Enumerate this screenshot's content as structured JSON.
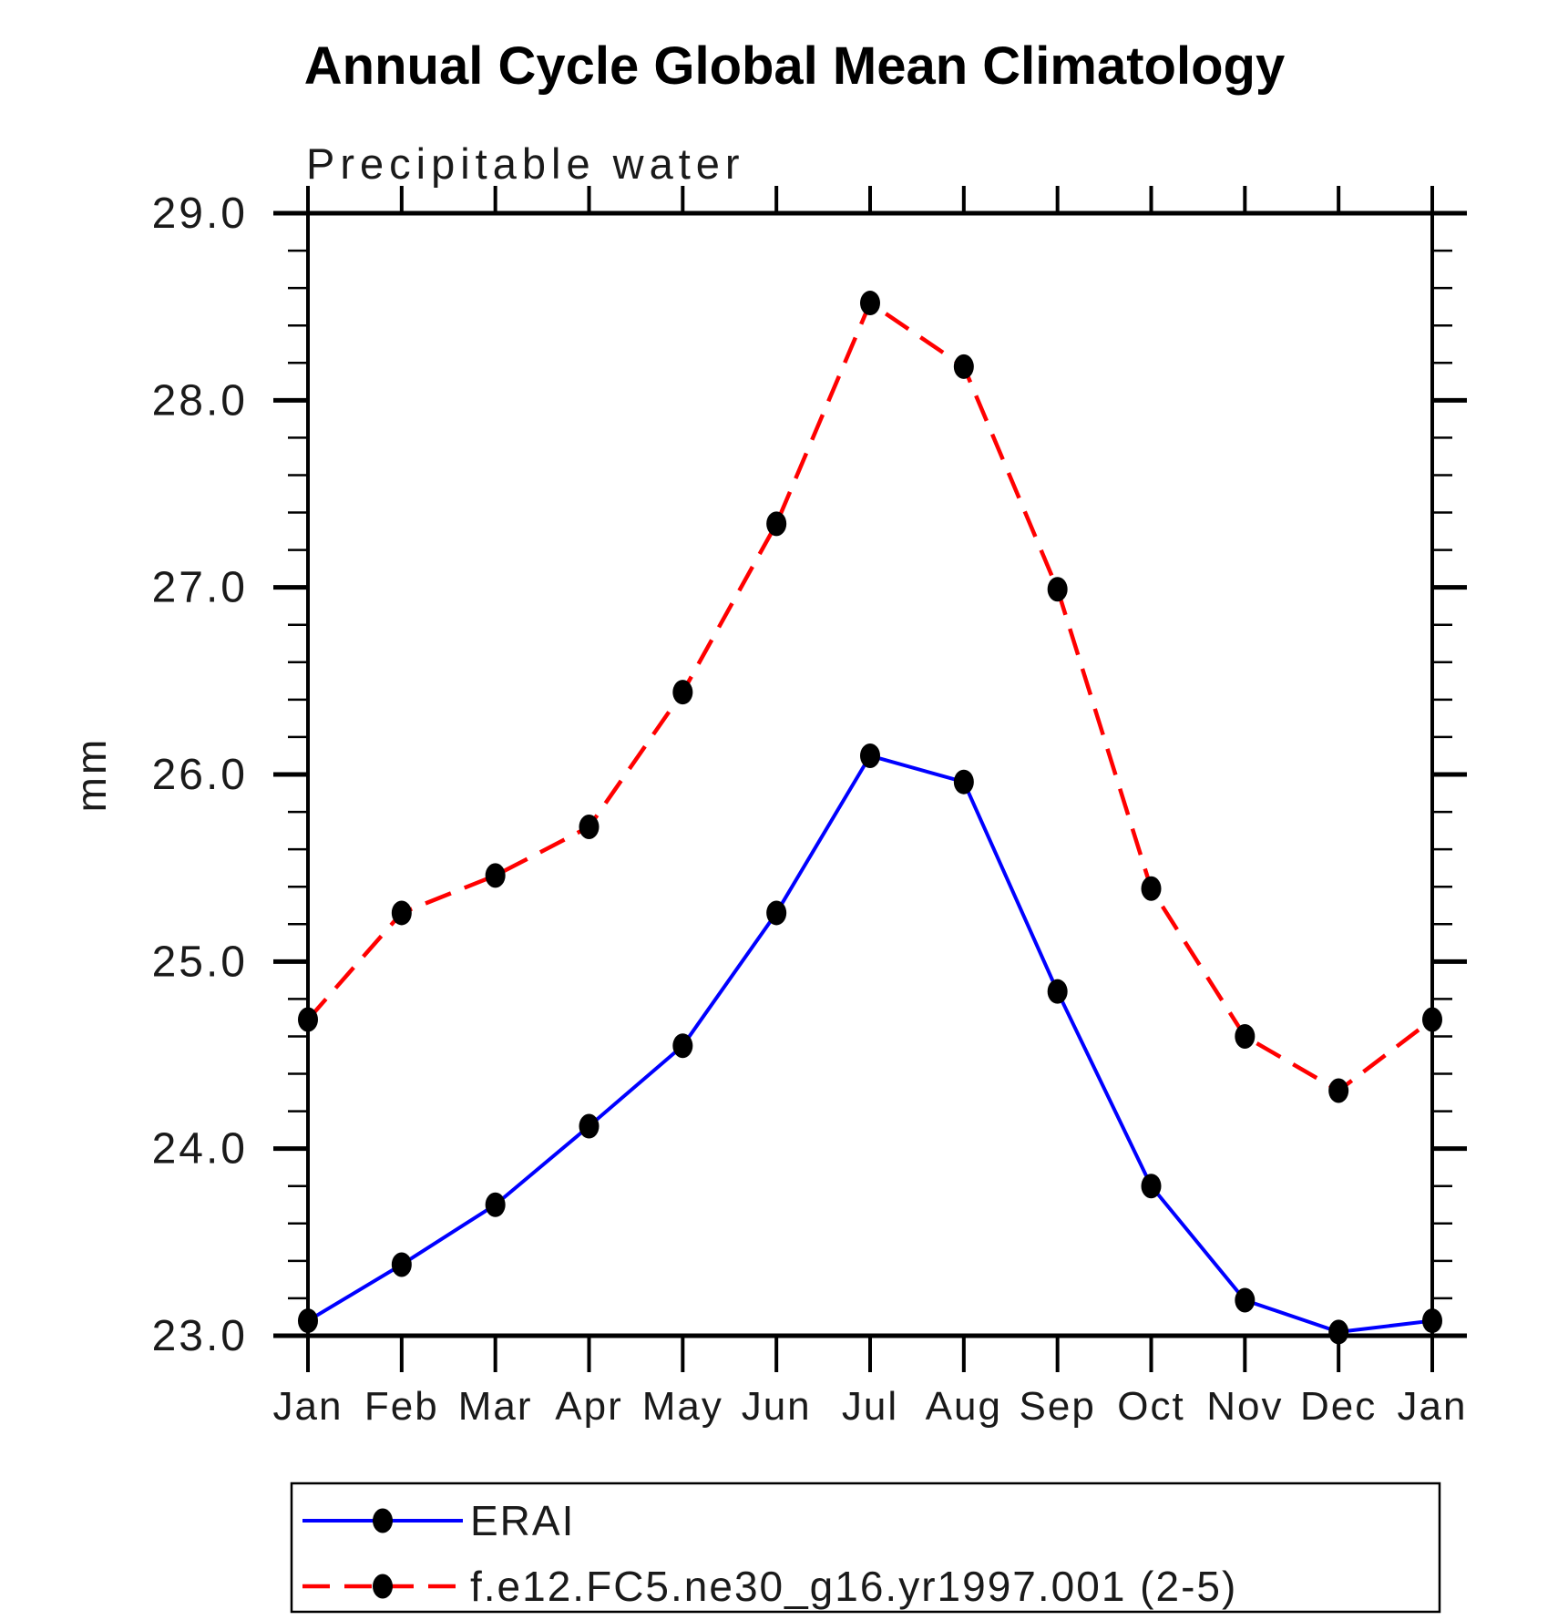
{
  "title": "Annual Cycle Global Mean Climatology",
  "chart_data": {
    "type": "line",
    "subtitle": "Precipitable water",
    "ylabel": "mm",
    "xlabel": "",
    "x_categories": [
      "Jan",
      "Feb",
      "Mar",
      "Apr",
      "May",
      "Jun",
      "Jul",
      "Aug",
      "Sep",
      "Oct",
      "Nov",
      "Dec",
      "Jan"
    ],
    "ylim": [
      23.0,
      29.0
    ],
    "ytick_major_step": 1.0,
    "ytick_minor_step": 0.2,
    "ytick_labels": [
      "23.0",
      "24.0",
      "25.0",
      "26.0",
      "27.0",
      "28.0",
      "29.0"
    ],
    "grid": false,
    "legend_position": "bottom-left-box",
    "marker": "filled-black-dot",
    "series": [
      {
        "name": "ERAI",
        "color": "#0000ff",
        "line_style": "solid",
        "marker_color": "#000000",
        "values": [
          23.08,
          23.38,
          23.7,
          24.12,
          24.55,
          25.26,
          26.1,
          25.96,
          24.84,
          23.8,
          23.19,
          23.02,
          23.08
        ]
      },
      {
        "name": "f.e12.FC5.ne30_g16.yr1997.001 (2-5)",
        "color": "#ff0000",
        "line_style": "dashed",
        "marker_color": "#000000",
        "values": [
          24.69,
          25.26,
          25.46,
          25.72,
          26.44,
          27.34,
          28.52,
          28.18,
          26.99,
          25.39,
          24.6,
          24.31,
          24.69
        ]
      }
    ]
  }
}
